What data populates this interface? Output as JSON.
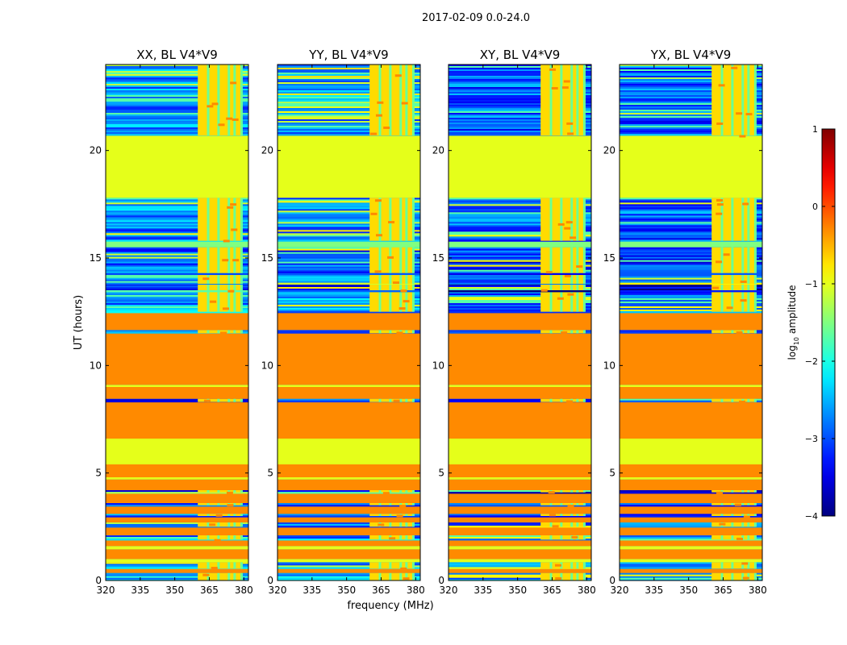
{
  "chart_data": {
    "type": "heatmap",
    "suptitle": "2017-02-09 0.0-24.0",
    "xlabel": "frequency (MHz)",
    "ylabel": "UT (hours)",
    "xlim": [
      320,
      382
    ],
    "ylim": [
      0,
      24
    ],
    "xticks": [
      320,
      335,
      350,
      365,
      380
    ],
    "yticks": [
      0,
      5,
      10,
      15,
      20
    ],
    "colorbar": {
      "label_prefix": "log",
      "label_sub": "10",
      "label_suffix": " amplitude",
      "range": [
        -4,
        1
      ],
      "ticks": [
        {
          "value": 1,
          "label": "1"
        },
        {
          "value": 0,
          "label": "0"
        },
        {
          "value": -1,
          "label": "−1"
        },
        {
          "value": -2,
          "label": "−2"
        },
        {
          "value": -3,
          "label": "−3"
        },
        {
          "value": -4,
          "label": "−4"
        }
      ]
    },
    "panels": [
      {
        "title": "XX, BL V4*V9",
        "seed": 1
      },
      {
        "title": "YY, BL V4*V9",
        "seed": 2
      },
      {
        "title": "XY, BL V4*V9",
        "seed": 3
      },
      {
        "title": "YX, BL V4*V9",
        "seed": 4
      }
    ],
    "rfi_band_mhz": [
      360,
      379
    ],
    "rfi_channels_mhz": [
      364.5,
      369,
      373.5,
      376,
      379
    ],
    "time_segments": [
      {
        "t0": 0.0,
        "t1": 0.35,
        "kind": "noise",
        "value": -2.3
      },
      {
        "t0": 0.35,
        "t1": 0.55,
        "kind": "flat",
        "value": -0.3
      },
      {
        "t0": 0.55,
        "t1": 0.85,
        "kind": "noise",
        "value": -2.5
      },
      {
        "t0": 0.85,
        "t1": 1.0,
        "kind": "flat",
        "value": -1.0
      },
      {
        "t0": 1.0,
        "t1": 1.45,
        "kind": "flat",
        "value": -0.3
      },
      {
        "t0": 1.45,
        "t1": 1.6,
        "kind": "flat",
        "value": -1.0
      },
      {
        "t0": 1.6,
        "t1": 1.9,
        "kind": "flat",
        "value": -0.3
      },
      {
        "t0": 1.9,
        "t1": 2.1,
        "kind": "noise",
        "value": -2.6
      },
      {
        "t0": 2.1,
        "t1": 2.5,
        "kind": "flat",
        "value": -0.3
      },
      {
        "t0": 2.5,
        "t1": 2.7,
        "kind": "noise",
        "value": -2.6
      },
      {
        "t0": 2.7,
        "t1": 3.0,
        "kind": "flat",
        "value": -0.3
      },
      {
        "t0": 3.0,
        "t1": 3.1,
        "kind": "noise",
        "value": -2.8
      },
      {
        "t0": 3.1,
        "t1": 3.5,
        "kind": "flat",
        "value": -0.3
      },
      {
        "t0": 3.5,
        "t1": 3.6,
        "kind": "noise",
        "value": -2.8
      },
      {
        "t0": 3.6,
        "t1": 4.1,
        "kind": "flat",
        "value": -0.3
      },
      {
        "t0": 4.1,
        "t1": 4.2,
        "kind": "noise",
        "value": -3.0
      },
      {
        "t0": 4.2,
        "t1": 4.7,
        "kind": "flat",
        "value": -0.3
      },
      {
        "t0": 4.7,
        "t1": 4.8,
        "kind": "flat",
        "value": -1.0
      },
      {
        "t0": 4.8,
        "t1": 5.4,
        "kind": "flat",
        "value": -0.3
      },
      {
        "t0": 5.4,
        "t1": 6.6,
        "kind": "flat",
        "value": -1.0
      },
      {
        "t0": 6.6,
        "t1": 8.3,
        "kind": "flat",
        "value": -0.3
      },
      {
        "t0": 8.3,
        "t1": 8.45,
        "kind": "noise",
        "value": -3.0
      },
      {
        "t0": 8.45,
        "t1": 9.0,
        "kind": "flat",
        "value": -0.3
      },
      {
        "t0": 9.0,
        "t1": 9.1,
        "kind": "flat",
        "value": -1.0
      },
      {
        "t0": 9.1,
        "t1": 11.5,
        "kind": "flat",
        "value": -0.3
      },
      {
        "t0": 11.5,
        "t1": 11.65,
        "kind": "noise",
        "value": -2.8
      },
      {
        "t0": 11.65,
        "t1": 12.5,
        "kind": "flat",
        "value": -0.3
      },
      {
        "t0": 12.5,
        "t1": 13.5,
        "kind": "noise",
        "value": -2.5
      },
      {
        "t0": 13.5,
        "t1": 13.8,
        "kind": "noise",
        "value": -3.3
      },
      {
        "t0": 13.8,
        "t1": 14.3,
        "kind": "noise",
        "value": -2.6
      },
      {
        "t0": 14.3,
        "t1": 15.5,
        "kind": "noise",
        "value": -2.8
      },
      {
        "t0": 15.5,
        "t1": 15.8,
        "kind": "flat",
        "value": -1.5
      },
      {
        "t0": 15.8,
        "t1": 17.8,
        "kind": "noise",
        "value": -2.6
      },
      {
        "t0": 17.8,
        "t1": 20.7,
        "kind": "flat",
        "value": -1.0
      },
      {
        "t0": 20.7,
        "t1": 24.0,
        "kind": "noise",
        "value": -2.6
      }
    ]
  }
}
